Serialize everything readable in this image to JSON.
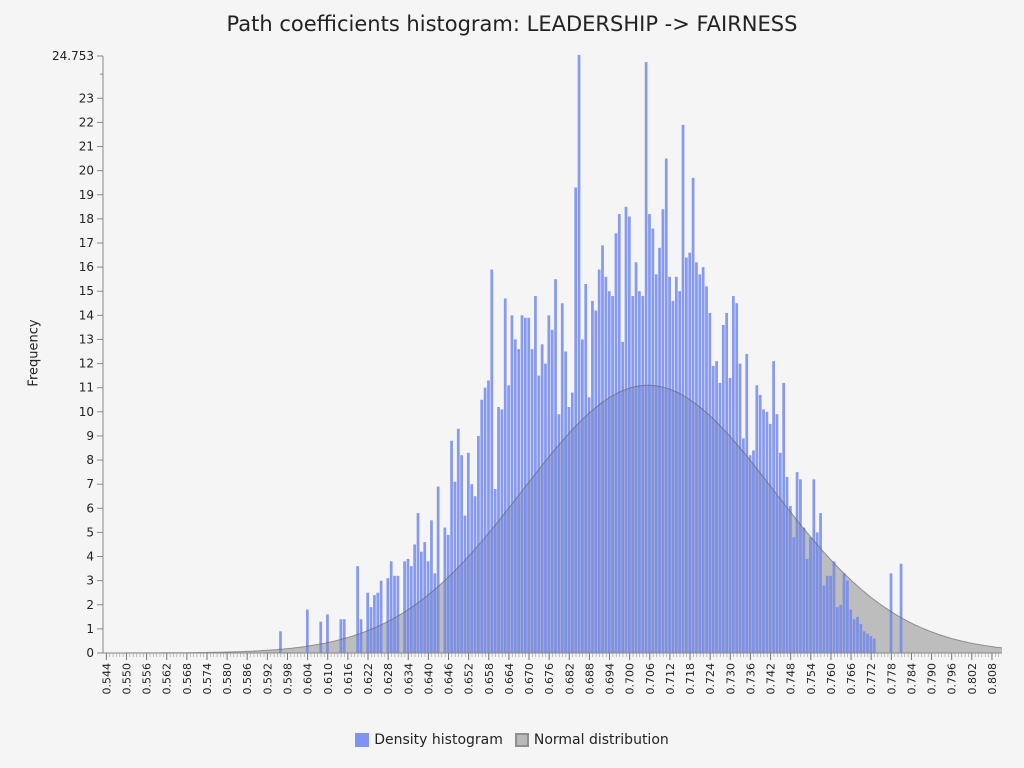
{
  "chart_data": {
    "type": "bar",
    "title": "Path coefficients histogram: LEADERSHIP -> FAIRNESS",
    "xlabel": "",
    "ylabel": "Frequency",
    "xlim": [
      0.543,
      0.811
    ],
    "ylim": [
      0,
      24.753
    ],
    "y_max_label": "24.753",
    "y_ticks": [
      0,
      1,
      2,
      3,
      4,
      5,
      6,
      7,
      8,
      9,
      10,
      11,
      12,
      13,
      14,
      15,
      16,
      17,
      18,
      19,
      20,
      21,
      22,
      23
    ],
    "x_tick_labels": [
      "0.544",
      "0.550",
      "0.556",
      "0.562",
      "0.568",
      "0.574",
      "0.580",
      "0.586",
      "0.592",
      "0.598",
      "0.604",
      "0.610",
      "0.616",
      "0.622",
      "0.628",
      "0.634",
      "0.640",
      "0.646",
      "0.652",
      "0.658",
      "0.664",
      "0.670",
      "0.676",
      "0.682",
      "0.688",
      "0.694",
      "0.700",
      "0.706",
      "0.712",
      "0.718",
      "0.724",
      "0.730",
      "0.736",
      "0.742",
      "0.748",
      "0.754",
      "0.760",
      "0.766",
      "0.772",
      "0.778",
      "0.784",
      "0.790",
      "0.796",
      "0.802",
      "0.808"
    ],
    "bin_width": 0.001,
    "histogram_start": 0.5955,
    "histogram_frequencies": [
      0.9,
      0,
      0,
      0,
      0,
      0,
      0,
      0,
      1.8,
      0,
      0,
      0,
      1.3,
      0,
      1.6,
      0,
      0,
      0,
      1.4,
      1.4,
      0,
      0,
      0,
      3.6,
      1.4,
      0,
      2.5,
      1.9,
      2.4,
      2.5,
      3.0,
      0,
      3.1,
      3.8,
      3.2,
      3.2,
      0,
      3.8,
      3.9,
      3.6,
      4.5,
      5.8,
      4.2,
      4.6,
      3.8,
      5.5,
      3.3,
      6.9,
      0,
      5.2,
      4.9,
      8.8,
      7.1,
      9.3,
      8.2,
      5.7,
      8.3,
      7.0,
      6.5,
      9.0,
      10.5,
      11.0,
      11.3,
      15.9,
      6.8,
      10.2,
      10.1,
      14.7,
      11.1,
      14.0,
      13.0,
      12.6,
      14.0,
      13.9,
      13.9,
      12.6,
      14.8,
      11.5,
      12.8,
      12.0,
      14.0,
      13.4,
      15.5,
      9.9,
      14.5,
      12.5,
      10.2,
      10.8,
      19.3,
      24.8,
      13.0,
      15.3,
      10.6,
      14.6,
      14.2,
      15.9,
      16.9,
      15.6,
      15.0,
      14.8,
      17.4,
      18.2,
      12.9,
      18.5,
      18.1,
      14.8,
      16.2,
      15.0,
      14.8,
      24.5,
      18.2,
      17.6,
      15.7,
      16.8,
      18.4,
      20.5,
      15.6,
      14.6,
      15.6,
      15.0,
      21.9,
      16.4,
      16.6,
      19.7,
      16.2,
      15.7,
      16.0,
      15.2,
      14.1,
      11.9,
      12.1,
      11.2,
      13.6,
      14.1,
      11.4,
      14.8,
      14.5,
      12.0,
      8.9,
      12.4,
      8.2,
      8.4,
      11.1,
      10.7,
      10.1,
      10.0,
      9.5,
      12.1,
      9.9,
      8.3,
      11.2,
      7.3,
      6.1,
      4.8,
      7.5,
      7.2,
      5.2,
      3.9,
      4.8,
      7.2,
      5.0,
      5.8,
      2.8,
      3.2,
      3.2,
      3.8,
      1.9,
      2.0,
      3.3,
      3.0,
      1.8,
      1.4,
      1.5,
      1.2,
      0.9,
      0.8,
      0.7,
      0.6,
      0,
      0,
      0,
      0,
      3.3,
      0,
      0,
      3.7
    ],
    "normal_distribution": {
      "mean": 0.7055,
      "sd": 0.0375,
      "peak": 11.1
    },
    "series": [
      {
        "name": "Density histogram",
        "color": "#7f93f0"
      },
      {
        "name": "Normal distribution",
        "color": "#a9a9a9"
      }
    ],
    "legend_position": "bottom"
  }
}
